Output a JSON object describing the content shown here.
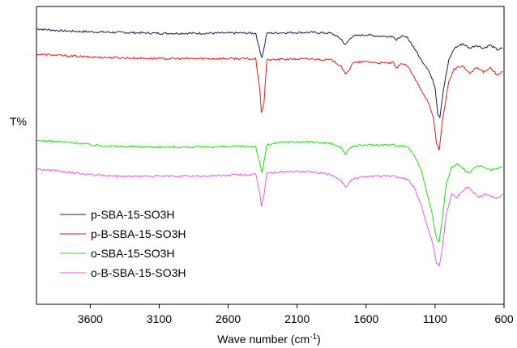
{
  "chart_data": {
    "type": "line",
    "title": "",
    "xlabel": "Wave number (cm",
    "xlabel_sup": "-1",
    "xlabel_suffix": ")",
    "ylabel": "T%",
    "xlim": [
      3990,
      600
    ],
    "x_reversed": true,
    "ylim": [
      0,
      100
    ],
    "y_ticks_shown": false,
    "grid": false,
    "legend_position": "lower-left",
    "x_ticks": [
      3600,
      3100,
      2600,
      2100,
      1600,
      1100,
      600
    ],
    "series": [
      {
        "name": "p-SBA-15-SO3H",
        "color": "#1a1a4e",
        "points": [
          [
            3990,
            92.5
          ],
          [
            3800,
            91.8
          ],
          [
            3600,
            91.5
          ],
          [
            3400,
            91.3
          ],
          [
            3100,
            91.0
          ],
          [
            2800,
            91.0
          ],
          [
            2500,
            91.1
          ],
          [
            2400,
            91.0
          ],
          [
            2370,
            85.0
          ],
          [
            2355,
            83.0
          ],
          [
            2340,
            86.0
          ],
          [
            2320,
            91.0
          ],
          [
            2200,
            91.2
          ],
          [
            2000,
            91.3
          ],
          [
            1850,
            91.0
          ],
          [
            1780,
            89.0
          ],
          [
            1750,
            87.0
          ],
          [
            1720,
            89.0
          ],
          [
            1700,
            90.0
          ],
          [
            1600,
            90.5
          ],
          [
            1500,
            90.0
          ],
          [
            1400,
            90.0
          ],
          [
            1380,
            88.5
          ],
          [
            1350,
            90.0
          ],
          [
            1300,
            89.5
          ],
          [
            1250,
            86.0
          ],
          [
            1200,
            82.0
          ],
          [
            1150,
            79.0
          ],
          [
            1100,
            73.0
          ],
          [
            1080,
            64.0
          ],
          [
            1065,
            63.0
          ],
          [
            1040,
            72.0
          ],
          [
            1000,
            82.0
          ],
          [
            960,
            86.0
          ],
          [
            900,
            87.5
          ],
          [
            850,
            86.0
          ],
          [
            800,
            87.0
          ],
          [
            750,
            86.0
          ],
          [
            700,
            87.0
          ],
          [
            650,
            85.5
          ],
          [
            610,
            86.0
          ]
        ]
      },
      {
        "name": "p-B-SBA-15-SO3H",
        "color": "#e31a1c",
        "points": [
          [
            3990,
            84.0
          ],
          [
            3800,
            83.5
          ],
          [
            3600,
            83.0
          ],
          [
            3400,
            82.8
          ],
          [
            3100,
            82.5
          ],
          [
            2800,
            82.5
          ],
          [
            2500,
            82.5
          ],
          [
            2400,
            82.3
          ],
          [
            2370,
            72.0
          ],
          [
            2360,
            64.0
          ],
          [
            2340,
            68.0
          ],
          [
            2320,
            82.0
          ],
          [
            2200,
            82.3
          ],
          [
            2000,
            82.4
          ],
          [
            1850,
            82.0
          ],
          [
            1780,
            80.0
          ],
          [
            1750,
            77.0
          ],
          [
            1720,
            79.0
          ],
          [
            1700,
            81.0
          ],
          [
            1600,
            81.5
          ],
          [
            1500,
            81.0
          ],
          [
            1400,
            81.0
          ],
          [
            1380,
            79.0
          ],
          [
            1350,
            81.0
          ],
          [
            1300,
            80.0
          ],
          [
            1250,
            76.0
          ],
          [
            1200,
            72.0
          ],
          [
            1150,
            68.0
          ],
          [
            1110,
            62.0
          ],
          [
            1090,
            54.0
          ],
          [
            1070,
            52.0
          ],
          [
            1045,
            62.0
          ],
          [
            1000,
            75.0
          ],
          [
            960,
            79.0
          ],
          [
            900,
            80.0
          ],
          [
            850,
            77.5
          ],
          [
            800,
            79.5
          ],
          [
            750,
            78.0
          ],
          [
            700,
            79.5
          ],
          [
            650,
            77.0
          ],
          [
            610,
            78.0
          ]
        ]
      },
      {
        "name": "o-SBA-15-SO3H",
        "color": "#22dd11",
        "points": [
          [
            3990,
            55.0
          ],
          [
            3800,
            54.5
          ],
          [
            3650,
            54.0
          ],
          [
            3600,
            53.5
          ],
          [
            3400,
            53.0
          ],
          [
            3100,
            52.8
          ],
          [
            2800,
            52.8
          ],
          [
            2500,
            53.0
          ],
          [
            2400,
            53.0
          ],
          [
            2370,
            47.0
          ],
          [
            2355,
            44.0
          ],
          [
            2340,
            48.0
          ],
          [
            2320,
            53.5
          ],
          [
            2200,
            54.5
          ],
          [
            2000,
            54.5
          ],
          [
            1850,
            54.0
          ],
          [
            1780,
            52.5
          ],
          [
            1750,
            50.5
          ],
          [
            1720,
            52.0
          ],
          [
            1700,
            53.0
          ],
          [
            1600,
            53.5
          ],
          [
            1500,
            53.5
          ],
          [
            1400,
            53.5
          ],
          [
            1300,
            53.0
          ],
          [
            1250,
            50.0
          ],
          [
            1200,
            45.0
          ],
          [
            1160,
            38.0
          ],
          [
            1120,
            30.0
          ],
          [
            1090,
            22.0
          ],
          [
            1070,
            21.0
          ],
          [
            1050,
            28.0
          ],
          [
            1020,
            40.0
          ],
          [
            980,
            46.0
          ],
          [
            940,
            47.0
          ],
          [
            900,
            45.5
          ],
          [
            850,
            44.0
          ],
          [
            800,
            46.5
          ],
          [
            750,
            46.0
          ],
          [
            700,
            45.0
          ],
          [
            650,
            45.5
          ],
          [
            610,
            46.0
          ]
        ]
      },
      {
        "name": "o-B-SBA-15-SO3H",
        "color": "#e75be7",
        "points": [
          [
            3990,
            45.5
          ],
          [
            3800,
            44.5
          ],
          [
            3600,
            43.5
          ],
          [
            3400,
            43.0
          ],
          [
            3100,
            43.0
          ],
          [
            2800,
            43.0
          ],
          [
            2500,
            43.5
          ],
          [
            2400,
            43.5
          ],
          [
            2370,
            37.0
          ],
          [
            2360,
            33.0
          ],
          [
            2340,
            37.0
          ],
          [
            2320,
            44.0
          ],
          [
            2200,
            44.5
          ],
          [
            2000,
            44.5
          ],
          [
            1850,
            43.5
          ],
          [
            1780,
            41.5
          ],
          [
            1750,
            39.5
          ],
          [
            1720,
            41.0
          ],
          [
            1700,
            42.0
          ],
          [
            1600,
            43.0
          ],
          [
            1500,
            43.0
          ],
          [
            1400,
            43.0
          ],
          [
            1300,
            42.0
          ],
          [
            1250,
            39.0
          ],
          [
            1200,
            33.0
          ],
          [
            1160,
            27.0
          ],
          [
            1120,
            21.0
          ],
          [
            1090,
            14.0
          ],
          [
            1070,
            13.0
          ],
          [
            1050,
            18.0
          ],
          [
            1020,
            30.0
          ],
          [
            980,
            37.0
          ],
          [
            940,
            36.0
          ],
          [
            900,
            38.0
          ],
          [
            860,
            39.5
          ],
          [
            820,
            37.5
          ],
          [
            780,
            36.0
          ],
          [
            740,
            37.0
          ],
          [
            700,
            36.5
          ],
          [
            650,
            35.5
          ],
          [
            610,
            37.0
          ]
        ]
      }
    ]
  }
}
